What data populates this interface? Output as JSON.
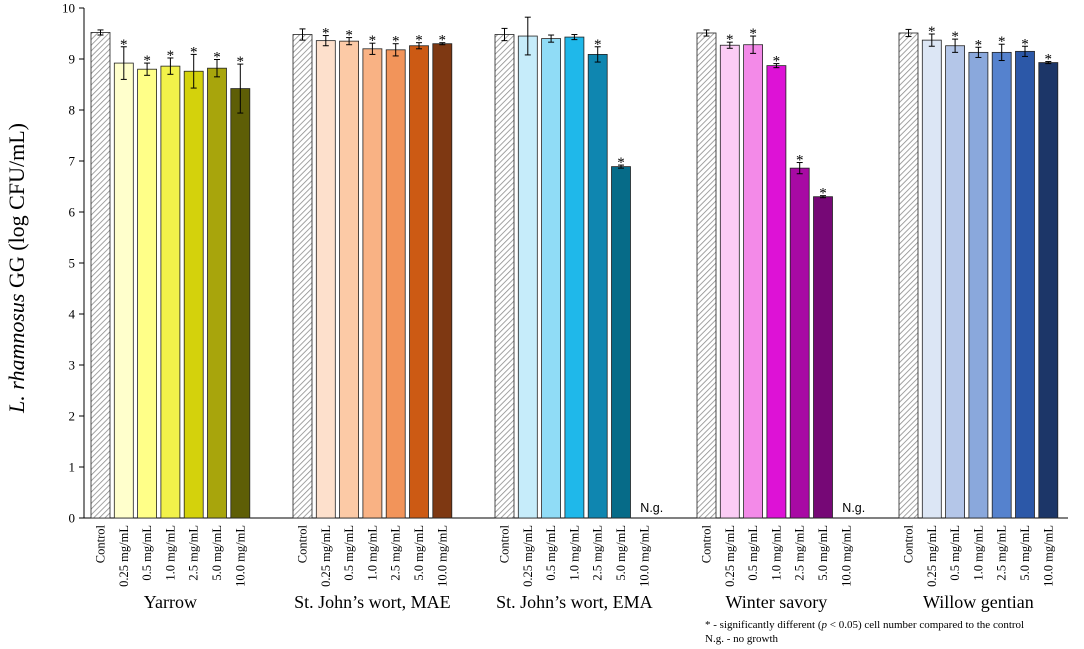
{
  "chart_data": {
    "type": "bar",
    "ylabel_italic": "L. rhamnosus",
    "ylabel_rest": "GG (log CFU/mL)",
    "ylim": [
      0,
      10
    ],
    "yticks": [
      0,
      1,
      2,
      3,
      4,
      5,
      6,
      7,
      8,
      9,
      10
    ],
    "grid": false,
    "categories": [
      "Control",
      "0.25 mg/mL",
      "0.5 mg/mL",
      "1.0 mg/mL",
      "2.5 mg/mL",
      "5.0 mg/mL",
      "10.0 mg/mL"
    ],
    "groups": [
      {
        "name": "Yarrow",
        "colors": [
          "#ffffff",
          "#ffffcc",
          "#ffff88",
          "#f2f24a",
          "#d4d20c",
          "#a8a50c",
          "#5e5e06"
        ],
        "values": [
          9.52,
          8.92,
          8.8,
          8.86,
          8.76,
          8.82,
          8.42
        ],
        "errors": [
          0.05,
          0.32,
          0.12,
          0.16,
          0.33,
          0.17,
          0.48
        ],
        "significant": [
          false,
          true,
          true,
          true,
          true,
          true,
          true
        ],
        "no_growth": [
          false,
          false,
          false,
          false,
          false,
          false,
          false
        ]
      },
      {
        "name": "St. John’s wort, MAE",
        "colors": [
          "#ffffff",
          "#fde0cc",
          "#fccaa6",
          "#f9b284",
          "#f2945a",
          "#cc5a14",
          "#7e3812"
        ],
        "values": [
          9.48,
          9.36,
          9.35,
          9.2,
          9.18,
          9.26,
          9.3
        ],
        "errors": [
          0.11,
          0.1,
          0.07,
          0.11,
          0.12,
          0.06,
          0.02
        ],
        "significant": [
          false,
          true,
          true,
          true,
          true,
          true,
          true
        ],
        "no_growth": [
          false,
          false,
          false,
          false,
          false,
          false,
          false
        ]
      },
      {
        "name": "St. John’s wort, EMA",
        "colors": [
          "#ffffff",
          "#c6ecfa",
          "#90dcf6",
          "#1fb8ea",
          "#0f86b0",
          "#066b88",
          "#033f52"
        ],
        "values": [
          9.48,
          9.45,
          9.4,
          9.43,
          9.09,
          6.89,
          0
        ],
        "errors": [
          0.12,
          0.37,
          0.07,
          0.05,
          0.15,
          0.03,
          0
        ],
        "significant": [
          false,
          false,
          false,
          false,
          true,
          true,
          false
        ],
        "no_growth": [
          false,
          false,
          false,
          false,
          false,
          false,
          true
        ]
      },
      {
        "name": "Winter savory",
        "colors": [
          "#ffffff",
          "#fbccf5",
          "#f38ae8",
          "#dd12d6",
          "#a80aa4",
          "#760876",
          "#3e043e"
        ],
        "values": [
          9.51,
          9.27,
          9.28,
          8.87,
          6.86,
          6.3,
          0
        ],
        "errors": [
          0.06,
          0.06,
          0.17,
          0.04,
          0.11,
          0.02,
          0
        ],
        "significant": [
          false,
          true,
          true,
          true,
          true,
          true,
          false
        ],
        "no_growth": [
          false,
          false,
          false,
          false,
          false,
          false,
          true
        ]
      },
      {
        "name": "Willow gentian",
        "colors": [
          "#ffffff",
          "#dce6f5",
          "#b4c6e8",
          "#8aa8dc",
          "#5582ce",
          "#2c58a8",
          "#1c3668"
        ],
        "values": [
          9.51,
          9.37,
          9.26,
          9.13,
          9.13,
          9.15,
          8.93
        ],
        "errors": [
          0.07,
          0.12,
          0.13,
          0.1,
          0.16,
          0.1,
          0.02
        ],
        "significant": [
          false,
          true,
          true,
          true,
          true,
          true,
          true
        ],
        "no_growth": [
          false,
          false,
          false,
          false,
          false,
          false,
          false
        ]
      }
    ],
    "significance_marker": "*",
    "no_growth_label": "N.g.",
    "footnote": {
      "line1_pre": "* - significantly different (",
      "line1_p": "p",
      "line1_post": " < 0.05) cell number compared to the control",
      "line2": "N.g. - no growth"
    }
  }
}
